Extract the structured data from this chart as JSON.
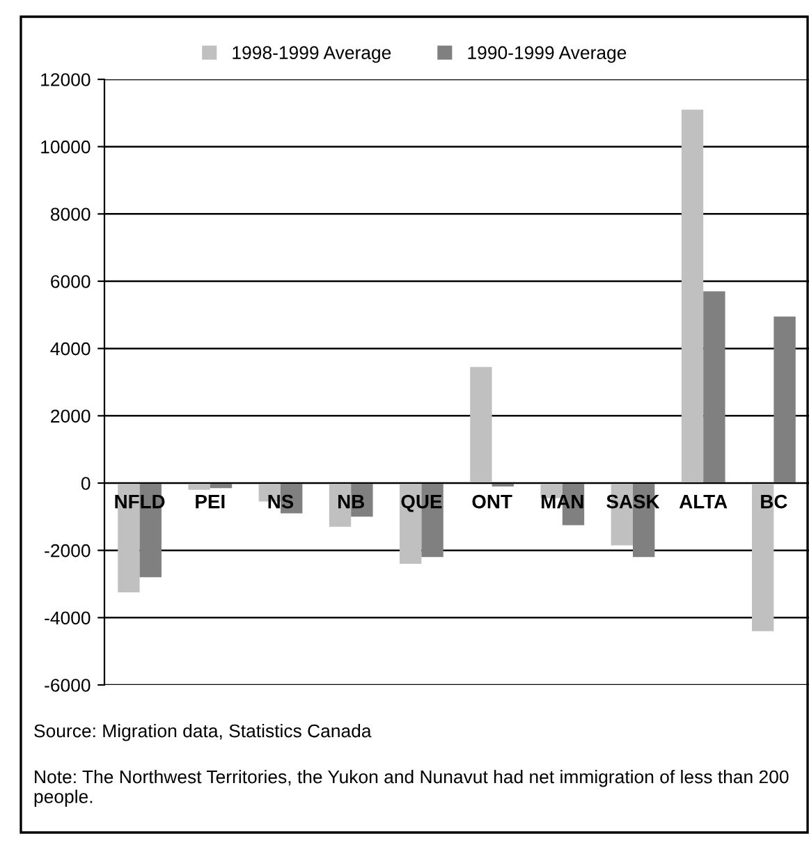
{
  "chart_data": {
    "type": "bar",
    "categories": [
      "NFLD",
      "PEI",
      "NS",
      "NB",
      "QUE",
      "ONT",
      "MAN",
      "SASK",
      "ALTA",
      "BC"
    ],
    "series": [
      {
        "name": "1998-1999 Average",
        "color": "#c0c0c0",
        "values": [
          -3250,
          -200,
          -550,
          -1300,
          -2400,
          3450,
          -450,
          -1850,
          11100,
          -4400
        ]
      },
      {
        "name": "1990-1999 Average",
        "color": "#808080",
        "values": [
          -2800,
          -150,
          -900,
          -1000,
          -2200,
          -100,
          -1250,
          -2200,
          5700,
          4950
        ]
      }
    ],
    "ylim": [
      -6000,
      12000
    ],
    "yticks": [
      -6000,
      -4000,
      -2000,
      0,
      2000,
      4000,
      6000,
      8000,
      10000,
      12000
    ],
    "grid": "y",
    "legend": "top",
    "annotations": [
      "Source: Migration data, Statistics Canada",
      "Note: The Northwest Territories, the Yukon and Nunavut had net immigration of less than 200 people."
    ]
  }
}
